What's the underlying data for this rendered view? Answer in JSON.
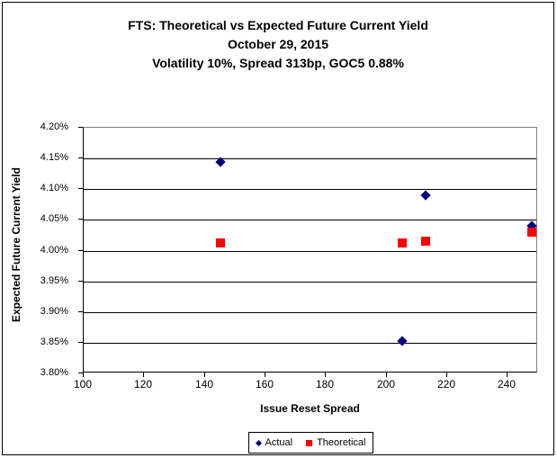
{
  "title": {
    "line1": "FTS: Theoretical vs Expected Future Current Yield",
    "line2": "October 29, 2015",
    "line3": "Volatility 10%, Spread 313bp, GOC5 0.88%"
  },
  "chart_data": {
    "type": "scatter",
    "title": "FTS: Theoretical vs Expected Future Current Yield",
    "subtitle": [
      "October 29, 2015",
      "Volatility 10%, Spread 313bp, GOC5 0.88%"
    ],
    "xlabel": "Issue Reset Spread",
    "ylabel": "Expected Future Current Yield",
    "xlim": [
      100,
      250
    ],
    "ylim": [
      3.8,
      4.2
    ],
    "x_ticks": [
      100,
      120,
      140,
      160,
      180,
      200,
      220,
      240
    ],
    "y_ticks": [
      4.2,
      4.15,
      4.1,
      4.05,
      4.0,
      3.95,
      3.9,
      3.85,
      3.8
    ],
    "y_tick_labels": [
      "4.20%",
      "4.15%",
      "4.10%",
      "4.05%",
      "4.00%",
      "3.95%",
      "3.90%",
      "3.85%",
      "3.80%"
    ],
    "grid": "horizontal-only",
    "legend_position": "bottom-center",
    "series": [
      {
        "name": "Actual",
        "marker": "diamond",
        "color": "#000080",
        "points": [
          [
            145,
            4.145
          ],
          [
            205,
            3.853
          ],
          [
            213,
            4.09
          ],
          [
            248,
            4.04
          ]
        ]
      },
      {
        "name": "Theoretical",
        "marker": "square",
        "color": "#ff0000",
        "points": [
          [
            145,
            4.012
          ],
          [
            205,
            4.013
          ],
          [
            213,
            4.016
          ],
          [
            248,
            4.03
          ]
        ]
      }
    ]
  }
}
